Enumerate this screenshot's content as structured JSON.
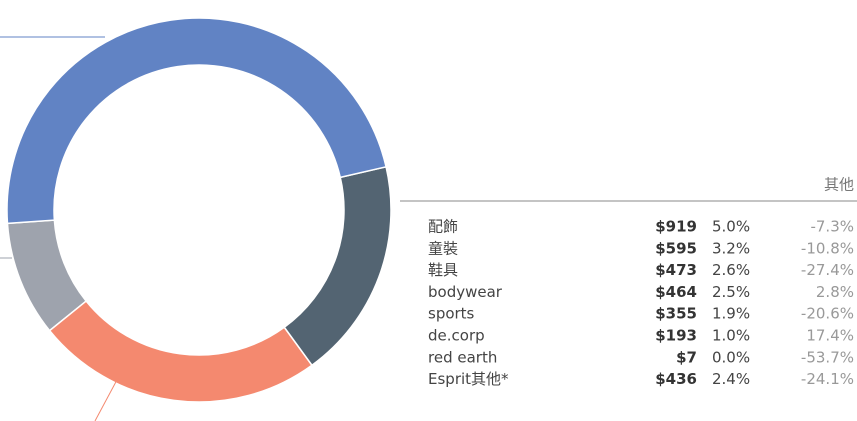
{
  "chart_data": {
    "type": "donut",
    "series": [
      {
        "color": "#6183c4",
        "values": [
          47.5
        ]
      },
      {
        "color": "#536472",
        "values": [
          18.6
        ]
      },
      {
        "color": "#f4896f",
        "values": [
          24.2
        ]
      },
      {
        "color": "#9ea3ad",
        "values": [
          9.7
        ]
      }
    ]
  },
  "table": {
    "header": "其他",
    "rows": [
      [
        "配飾",
        "$919",
        "5.0%",
        "-7.3%"
      ],
      [
        "童裝",
        "$595",
        "3.2%",
        "-10.8%"
      ],
      [
        "鞋具",
        "$473",
        "2.6%",
        "-27.4%"
      ],
      [
        "bodywear",
        "$464",
        "2.5%",
        "2.8%"
      ],
      [
        "sports",
        "$355",
        "1.9%",
        "-20.6%"
      ],
      [
        "de.corp",
        "$193",
        "1.0%",
        "17.4%"
      ],
      [
        "red earth",
        "$7",
        "0.0%",
        "-53.7%"
      ],
      [
        "Esprit其他*",
        "$436",
        "2.4%",
        "-24.1%"
      ]
    ]
  }
}
